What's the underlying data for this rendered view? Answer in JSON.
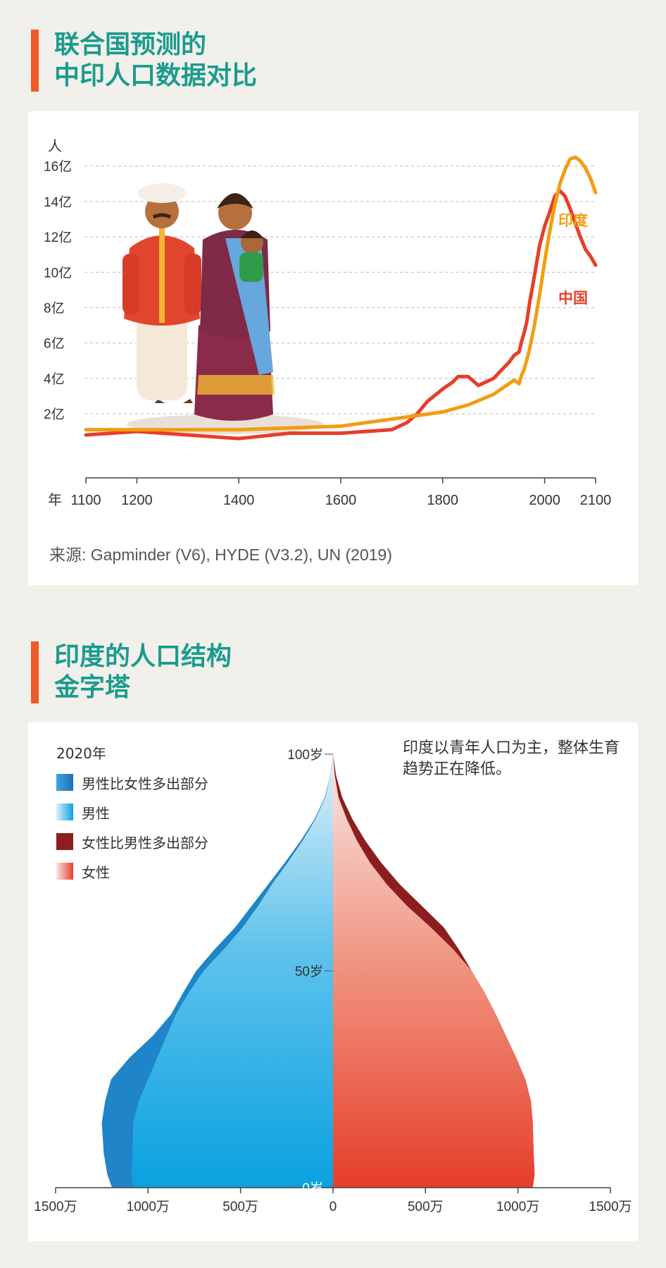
{
  "section1": {
    "title_line1": "联合国预测的",
    "title_line2": "中印人口数据对比"
  },
  "section2": {
    "title_line1": "印度的人口结构",
    "title_line2": "金字塔"
  },
  "chart_data": [
    {
      "type": "line",
      "title": "联合国预测的中印人口数据对比",
      "ylabel": "人",
      "xlabel": "年",
      "xlim": [
        1100,
        2100
      ],
      "ylim": [
        0,
        16
      ],
      "yticks": [
        "2亿",
        "4亿",
        "6亿",
        "8亿",
        "10亿",
        "12亿",
        "14亿",
        "16亿"
      ],
      "xticks": [
        "1100",
        "1200",
        "1400",
        "1600",
        "1800",
        "2000",
        "2100"
      ],
      "grid": "horizontal dashed",
      "source": "来源: Gapminder (V6), HYDE (V3.2), UN (2019)",
      "series": [
        {
          "name": "中国",
          "color": "#e63e2b",
          "points": [
            [
              1100,
              0.8
            ],
            [
              1200,
              1.0
            ],
            [
              1300,
              0.8
            ],
            [
              1400,
              0.6
            ],
            [
              1500,
              0.9
            ],
            [
              1600,
              0.9
            ],
            [
              1700,
              1.1
            ],
            [
              1730,
              1.5
            ],
            [
              1750,
              2.0
            ],
            [
              1770,
              2.7
            ],
            [
              1800,
              3.4
            ],
            [
              1820,
              3.8
            ],
            [
              1830,
              4.1
            ],
            [
              1850,
              4.1
            ],
            [
              1870,
              3.6
            ],
            [
              1900,
              4.0
            ],
            [
              1913,
              4.4
            ],
            [
              1930,
              4.9
            ],
            [
              1940,
              5.3
            ],
            [
              1950,
              5.5
            ],
            [
              1955,
              6.1
            ],
            [
              1960,
              6.6
            ],
            [
              1965,
              7.2
            ],
            [
              1970,
              8.2
            ],
            [
              1980,
              9.8
            ],
            [
              1990,
              11.5
            ],
            [
              2000,
              12.6
            ],
            [
              2010,
              13.4
            ],
            [
              2020,
              14.3
            ],
            [
              2030,
              14.6
            ],
            [
              2040,
              14.3
            ],
            [
              2050,
              13.6
            ],
            [
              2060,
              12.8
            ],
            [
              2070,
              12.0
            ],
            [
              2080,
              11.3
            ],
            [
              2090,
              10.9
            ],
            [
              2100,
              10.4
            ]
          ]
        },
        {
          "name": "印度",
          "color": "#f29d12",
          "points": [
            [
              1100,
              1.1
            ],
            [
              1200,
              1.1
            ],
            [
              1300,
              1.1
            ],
            [
              1400,
              1.1
            ],
            [
              1500,
              1.2
            ],
            [
              1600,
              1.3
            ],
            [
              1700,
              1.7
            ],
            [
              1750,
              1.9
            ],
            [
              1800,
              2.1
            ],
            [
              1850,
              2.5
            ],
            [
              1900,
              3.1
            ],
            [
              1920,
              3.5
            ],
            [
              1940,
              3.9
            ],
            [
              1950,
              3.7
            ],
            [
              1955,
              4.2
            ],
            [
              1960,
              4.5
            ],
            [
              1970,
              5.6
            ],
            [
              1980,
              7.0
            ],
            [
              1990,
              8.7
            ],
            [
              2000,
              10.6
            ],
            [
              2010,
              12.3
            ],
            [
              2020,
              13.8
            ],
            [
              2030,
              15.0
            ],
            [
              2040,
              15.8
            ],
            [
              2050,
              16.4
            ],
            [
              2060,
              16.5
            ],
            [
              2070,
              16.3
            ],
            [
              2080,
              15.9
            ],
            [
              2090,
              15.3
            ],
            [
              2100,
              14.5
            ]
          ]
        }
      ]
    },
    {
      "type": "area",
      "title": "印度的人口结构金字塔",
      "subtitle": "2020年",
      "orientation": "horizontal population pyramid",
      "xlim": [
        -1500,
        1500
      ],
      "x_unit": "万",
      "xticks": [
        "1500万",
        "1000万",
        "500万",
        "0",
        "500万",
        "1000万",
        "1500万"
      ],
      "yticks": [
        "0岁",
        "50岁",
        "100岁"
      ],
      "note": "印度以青年人口为主，整体生育趋势正在降低。",
      "legend": [
        "男性比女性多出部分",
        "男性",
        "女性比男性多出部分",
        "女性"
      ],
      "ages": [
        0,
        3,
        8,
        15,
        20,
        25,
        30,
        35,
        40,
        45,
        50,
        55,
        60,
        65,
        70,
        75,
        80,
        85,
        90,
        95,
        100
      ],
      "male": [
        1195,
        1220,
        1240,
        1250,
        1232,
        1200,
        1100,
        975,
        875,
        810,
        740,
        640,
        530,
        440,
        350,
        260,
        175,
        100,
        45,
        15,
        0
      ],
      "male_core": [
        1080,
        1090,
        1085,
        1080,
        1050,
        1000,
        950,
        900,
        850,
        780,
        700,
        590,
        490,
        405,
        330,
        245,
        165,
        95,
        42,
        14,
        0
      ],
      "female": [
        1080,
        1090,
        1085,
        1080,
        1070,
        1040,
        990,
        935,
        880,
        820,
        750,
        680,
        600,
        480,
        360,
        260,
        175,
        105,
        50,
        17,
        0
      ],
      "female_core": [
        1080,
        1090,
        1085,
        1080,
        1070,
        1040,
        990,
        935,
        880,
        820,
        750,
        650,
        530,
        400,
        290,
        200,
        130,
        75,
        30,
        10,
        0
      ]
    }
  ],
  "colors": {
    "accent_bar": "#ef5a28",
    "title_text": "#1a9b8e",
    "china": "#e63e2b",
    "india": "#f29d12",
    "male": "#0fa6e0",
    "male_excess": "#1f7fc4",
    "female": "#e94c34",
    "female_excess": "#8b1f1f"
  },
  "illustration": {
    "icon": "indian-family-illustration"
  }
}
